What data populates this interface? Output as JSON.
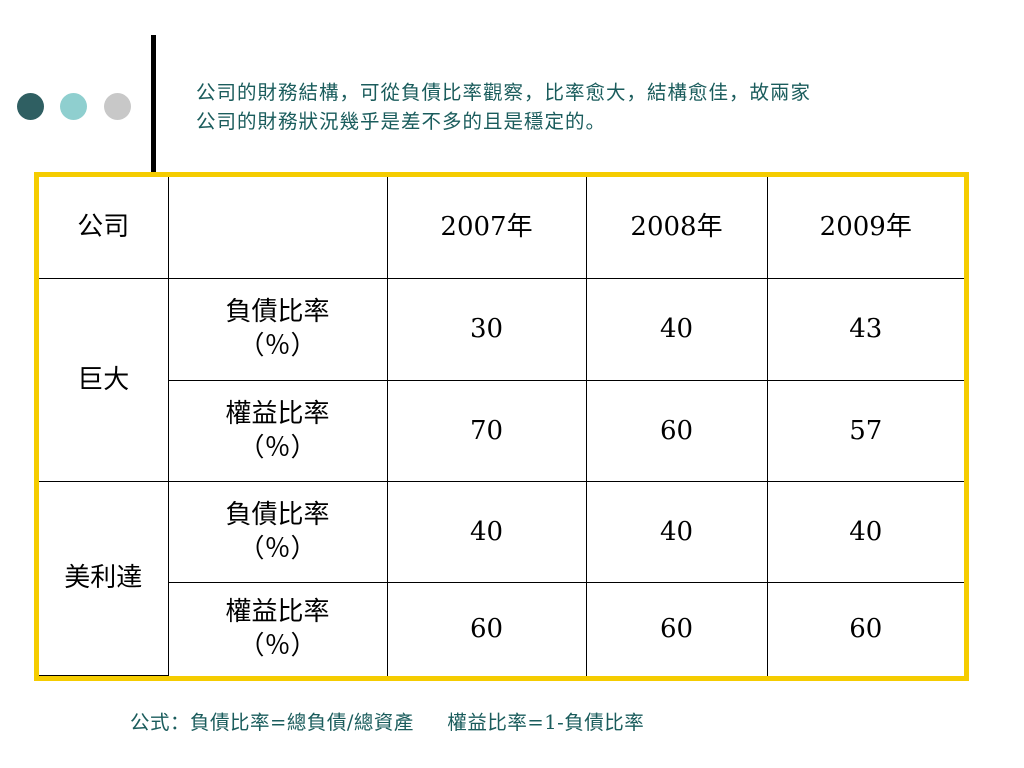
{
  "heading": {
    "line1": "公司的財務結構，可從負債比率觀察，比率愈大，結構愈佳，故兩家",
    "line2": "公司的財務狀況幾乎是差不多的且是穩定的。"
  },
  "colors": {
    "accent_dark": "#2f5f62",
    "accent_light": "#8fcfcf",
    "accent_gray": "#c8c8c8",
    "table_border": "#f5cc00",
    "text_teal": "#1a5c5c"
  },
  "table": {
    "header": {
      "company": "公司",
      "metric": "",
      "y1": "2007年",
      "y2": "2008年",
      "y3": "2009年"
    },
    "groups": [
      {
        "company": "巨大",
        "rows": [
          {
            "metric_l1": "負債比率",
            "metric_l2": "（％）",
            "values": [
              "30",
              "40",
              "43"
            ]
          },
          {
            "metric_l1": "權益比率",
            "metric_l2": "（％）",
            "values": [
              "70",
              "60",
              "57"
            ]
          }
        ]
      },
      {
        "company": "美利達",
        "rows": [
          {
            "metric_l1": "負債比率",
            "metric_l2": "（％）",
            "values": [
              "40",
              "40",
              "40"
            ]
          },
          {
            "metric_l1": "權益比率",
            "metric_l2": "（％）",
            "values": [
              "60",
              "60",
              "60"
            ]
          }
        ]
      }
    ]
  },
  "formula": {
    "text": "公式：負債比率=總負債/總資產     權益比率=1-負債比率"
  }
}
